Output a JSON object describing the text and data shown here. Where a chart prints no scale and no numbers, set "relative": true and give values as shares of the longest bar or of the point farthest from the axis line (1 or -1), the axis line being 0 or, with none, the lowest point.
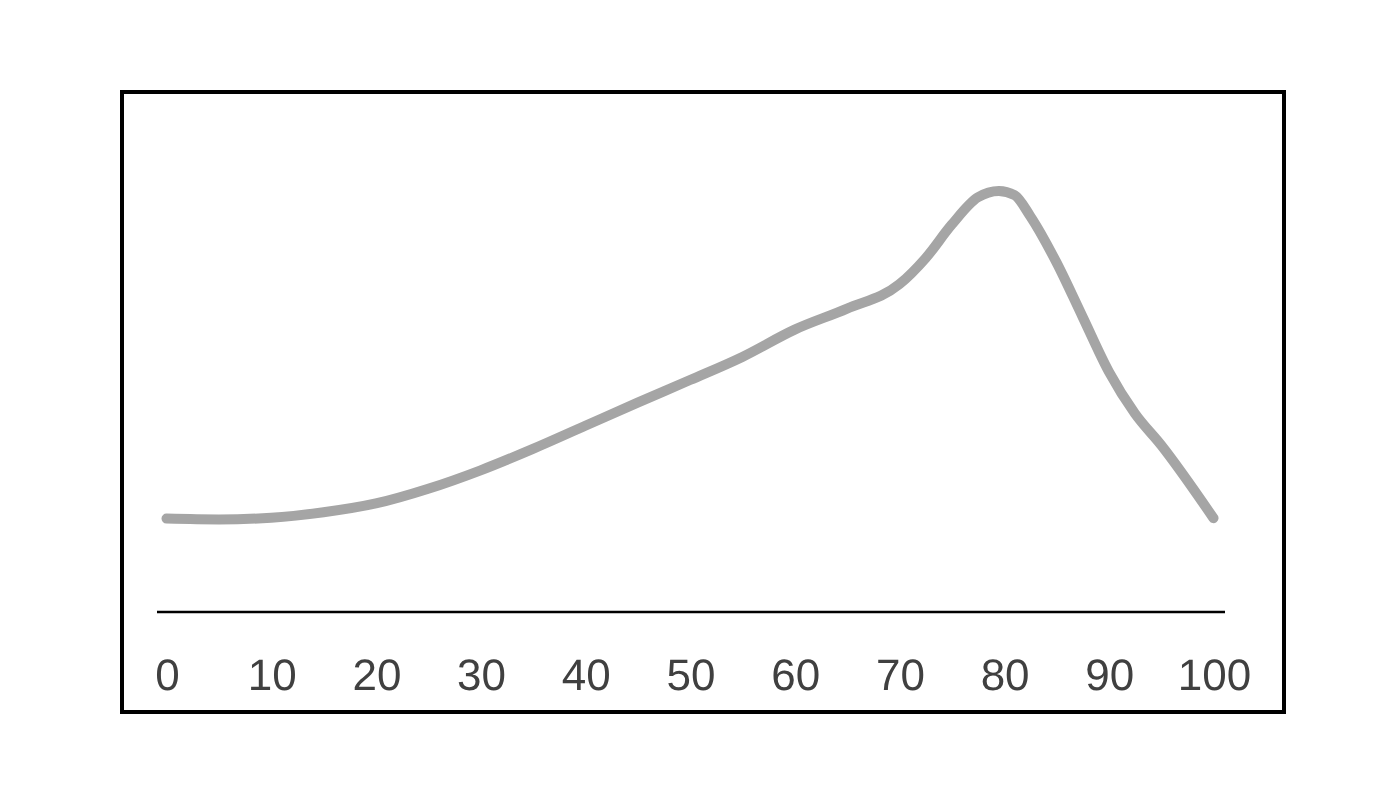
{
  "chart_data": {
    "type": "line",
    "relative": true,
    "x": [
      0,
      5,
      10,
      15,
      20,
      25,
      30,
      35,
      40,
      45,
      50,
      55,
      60,
      65,
      70,
      72.5,
      75,
      77.5,
      79.5,
      81,
      82.5,
      85,
      87.5,
      90,
      92.5,
      95,
      100
    ],
    "series": [
      {
        "color": "#a5a5a5",
        "values": [
          0.22,
          0.218,
          0.222,
          0.235,
          0.256,
          0.291,
          0.335,
          0.386,
          0.441,
          0.496,
          0.55,
          0.605,
          0.67,
          0.72,
          0.778,
          0.84,
          0.92,
          0.985,
          1,
          0.99,
          0.94,
          0.83,
          0.7,
          0.57,
          0.47,
          0.395,
          0.221
        ]
      }
    ],
    "xlim": [
      -1,
      101
    ],
    "xticks": [
      0,
      10,
      20,
      30,
      40,
      50,
      60,
      70,
      80,
      90,
      100
    ],
    "tick_labels": "x",
    "grid": false,
    "legend": false,
    "marker": "none",
    "line_style": "solid"
  }
}
